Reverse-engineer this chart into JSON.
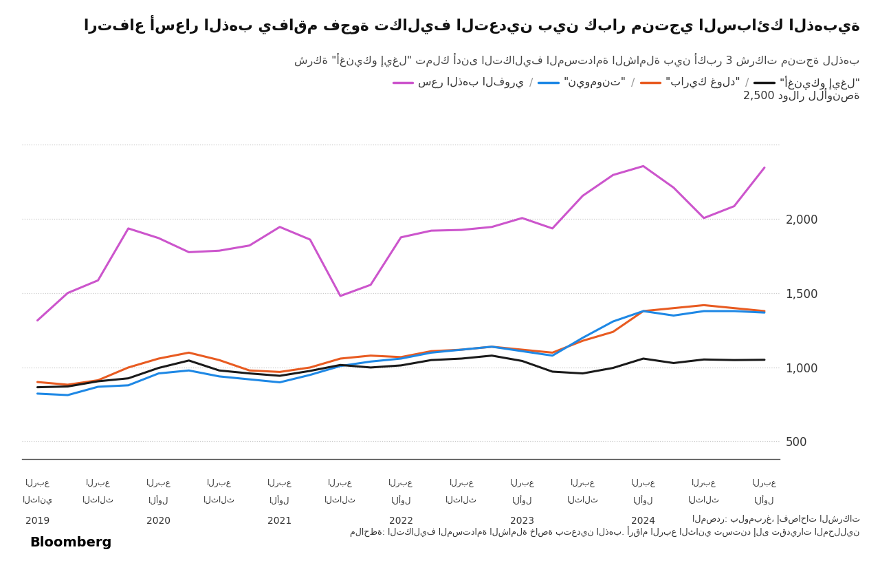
{
  "title": "ارتفاع أسعار الذهب يفاقم فجوة تكاليف التعدين بين كبار منتجي السبائك الذهبية",
  "subtitle": "شركة \"أغنيكو إيغل\" تملك أدنى التكاليف المستدامة الشاملة بين أكبر 3 شركات منتجة للذهب",
  "ylabel": "2,500 دولار للأونصة",
  "source_text": "المصدر: بلومبرغ، إفصاحات الشركات",
  "note_text": "ملاحظة: التكاليف المستدامة الشاملة خاصة بتعدين الذهب. أرقام الربع الثاني تستند إلى تقديرات المحللين",
  "bloomberg_text": "Bloomberg",
  "legend_items": [
    {
      "label": "\"أغنيكو إيغل\"",
      "color": "#1A1A1A"
    },
    {
      "label": "\"باريك غولد\"",
      "color": "#E85B21"
    },
    {
      "label": "\"نيومونت\"",
      "color": "#1E88E5"
    },
    {
      "label": "سعر الذهب الفوري",
      "color": "#CC55CC"
    }
  ],
  "background_color": "#FFFFFF",
  "grid_color": "#CCCCCC",
  "yticks": [
    500,
    1000,
    1500,
    2000,
    2500
  ],
  "ylim": [
    380,
    2720
  ],
  "quarter_labels": [
    [
      "الربع",
      "الثاني"
    ],
    [
      "الربع",
      "الثالث"
    ],
    [
      "الربع",
      "الأول"
    ],
    [
      "الربع",
      "الثالث"
    ],
    [
      "الربع",
      "الأول"
    ],
    [
      "الربع",
      "الثالث"
    ],
    [
      "الربع",
      "الأول"
    ],
    [
      "الربع",
      "الثالث"
    ],
    [
      "الربع",
      "الأول"
    ],
    [
      "الربع",
      "الثالث"
    ],
    [
      "الربع",
      "الأول"
    ],
    [
      "الربع",
      "الثالث"
    ],
    [
      "الربع",
      "الأول"
    ]
  ],
  "year_tick_indices": [
    0,
    2,
    4,
    6,
    8,
    10
  ],
  "year_labels": [
    "2019",
    "2020",
    "2021",
    "2022",
    "2023",
    "2024"
  ],
  "gold_price": [
    1315,
    1500,
    1585,
    1935,
    1870,
    1775,
    1785,
    1820,
    1945,
    1860,
    1480,
    1555,
    1875,
    1920,
    1925,
    1945,
    2005,
    1935,
    2155,
    2295,
    2355,
    2210,
    2005,
    2085,
    2345
  ],
  "agnico": [
    865,
    870,
    905,
    925,
    995,
    1045,
    978,
    958,
    942,
    975,
    1015,
    998,
    1012,
    1048,
    1058,
    1078,
    1042,
    970,
    958,
    995,
    1058,
    1028,
    1052,
    1048,
    1050
  ],
  "barrick": [
    900,
    882,
    912,
    998,
    1058,
    1098,
    1048,
    978,
    968,
    998,
    1058,
    1078,
    1068,
    1108,
    1118,
    1138,
    1118,
    1098,
    1178,
    1238,
    1378,
    1398,
    1418,
    1398,
    1378
  ],
  "newmont": [
    822,
    812,
    868,
    878,
    958,
    978,
    938,
    918,
    898,
    948,
    1008,
    1038,
    1058,
    1098,
    1118,
    1138,
    1108,
    1078,
    1198,
    1308,
    1378,
    1348,
    1378,
    1378,
    1368
  ]
}
